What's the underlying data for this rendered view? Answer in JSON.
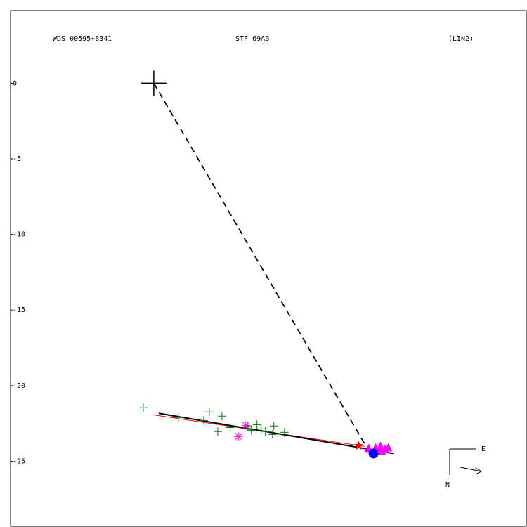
{
  "chart_data": {
    "type": "scatter",
    "title": "WDS 00595+8341",
    "subtitle": "STF  69AB",
    "note": "(LIN2)",
    "xlim": [
      -9.5,
      24.7
    ],
    "ylim": [
      -29.3,
      4.8
    ],
    "yticks": [
      0,
      -5,
      -10,
      -15,
      -20,
      -25
    ],
    "series": [
      {
        "marker": "plus",
        "color": "#008000",
        "x": [
          -0.7,
          1.63,
          3.31,
          3.68,
          4.52,
          4.24,
          5.07,
          6.24,
          6.47,
          6.84,
          7.12,
          7.4,
          7.87,
          7.96,
          8.66
        ],
        "y": [
          -21.46,
          -22.11,
          -22.3,
          -21.74,
          -22.02,
          -23.04,
          -22.77,
          -22.67,
          -22.95,
          -22.58,
          -22.86,
          -23.04,
          -23.23,
          -22.67,
          -23.09
        ]
      },
      {
        "marker": "asterisk",
        "color": "#ff00ff",
        "x": [
          5.63,
          6.1
        ],
        "y": [
          -23.37,
          -22.63
        ]
      },
      {
        "marker": "triangle",
        "color": "#ff00ff",
        "x": [
          14.25,
          14.71,
          15.04,
          15.32,
          15.55,
          15.13
        ],
        "y": [
          -24.16,
          -24.12,
          -24.02,
          -24.21,
          -24.12,
          -24.35
        ]
      },
      {
        "marker": "star",
        "color": "#ff0000",
        "x": [
          13.59
        ],
        "y": [
          -23.98
        ]
      },
      {
        "marker": "circle",
        "color": "#0000ff",
        "x": [
          14.57
        ],
        "y": [
          -24.49
        ]
      },
      {
        "marker": "bigplus",
        "color": "#000000",
        "x": [
          0
        ],
        "y": [
          0
        ]
      }
    ],
    "lines": [
      {
        "style": "dashed",
        "color": "#000000",
        "x": [
          0,
          14.11
        ],
        "y": [
          0,
          -24.07
        ]
      },
      {
        "style": "solid",
        "color": "#ff0000",
        "x": [
          -0.05,
          13.97
        ],
        "y": [
          -21.93,
          -24.02
        ]
      },
      {
        "style": "thick",
        "color": "#000000",
        "x": [
          0.33,
          15.92
        ],
        "y": [
          -21.83,
          -24.49
        ]
      }
    ],
    "compass": {
      "east": "E",
      "north": "N"
    }
  }
}
